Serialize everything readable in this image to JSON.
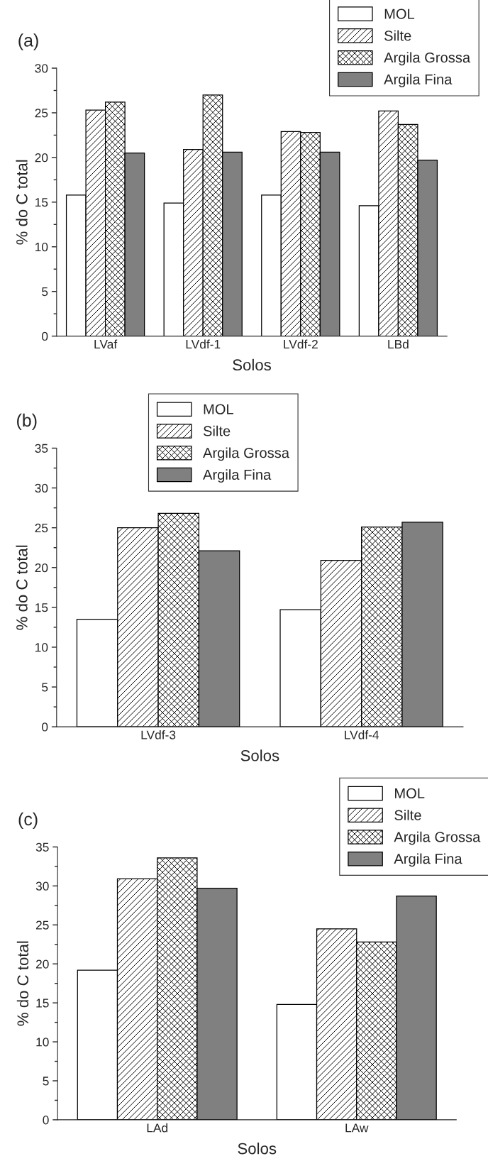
{
  "chart_data": [
    {
      "type": "bar",
      "title": "(a)",
      "xlabel": "Solos",
      "ylabel": "% do C total",
      "categories": [
        "LVaf",
        "LVdf-1",
        "LVdf-2",
        "LBd"
      ],
      "ylim": [
        0,
        30
      ],
      "yticks": [
        0,
        5,
        10,
        15,
        20,
        25,
        30
      ],
      "legend": "top right",
      "grid": false,
      "series": [
        {
          "name": "MOL",
          "color": "#ffffff",
          "values": [
            15.8,
            14.9,
            15.8,
            14.6
          ]
        },
        {
          "name": "Silte",
          "color": "#000000",
          "values": [
            25.3,
            20.9,
            22.9,
            25.2
          ]
        },
        {
          "name": "Argila Grossa",
          "color": "#000000",
          "values": [
            26.2,
            27.0,
            22.8,
            23.7
          ]
        },
        {
          "name": "Argila Fina",
          "color": "#808080",
          "values": [
            20.5,
            20.6,
            20.6,
            19.7
          ]
        }
      ]
    },
    {
      "type": "bar",
      "title": "(b)",
      "xlabel": "Solos",
      "ylabel": "% do C total",
      "categories": [
        "LVdf-3",
        "LVdf-4"
      ],
      "ylim": [
        0,
        35
      ],
      "yticks": [
        0,
        5,
        10,
        15,
        20,
        25,
        30,
        35
      ],
      "legend": "top",
      "grid": false,
      "series": [
        {
          "name": "MOL",
          "color": "#ffffff",
          "values": [
            13.5,
            14.7
          ]
        },
        {
          "name": "Silte",
          "color": "#000000",
          "values": [
            25.0,
            20.9
          ]
        },
        {
          "name": "Argila Grossa",
          "color": "#000000",
          "values": [
            26.8,
            25.1
          ]
        },
        {
          "name": "Argila Fina",
          "color": "#808080",
          "values": [
            22.1,
            25.7
          ]
        }
      ]
    },
    {
      "type": "bar",
      "title": "(c)",
      "xlabel": "Solos",
      "ylabel": "% do C total",
      "categories": [
        "LAd",
        "LAw"
      ],
      "ylim": [
        0,
        35
      ],
      "yticks": [
        0,
        5,
        10,
        15,
        20,
        25,
        30,
        35
      ],
      "legend": "top right",
      "grid": false,
      "series": [
        {
          "name": "MOL",
          "color": "#ffffff",
          "values": [
            19.2,
            14.8
          ]
        },
        {
          "name": "Silte",
          "color": "#000000",
          "values": [
            30.9,
            24.5
          ]
        },
        {
          "name": "Argila Grossa",
          "color": "#000000",
          "values": [
            33.6,
            22.8
          ]
        },
        {
          "name": "Argila Fina",
          "color": "#808080",
          "values": [
            29.7,
            28.7
          ]
        }
      ]
    }
  ]
}
